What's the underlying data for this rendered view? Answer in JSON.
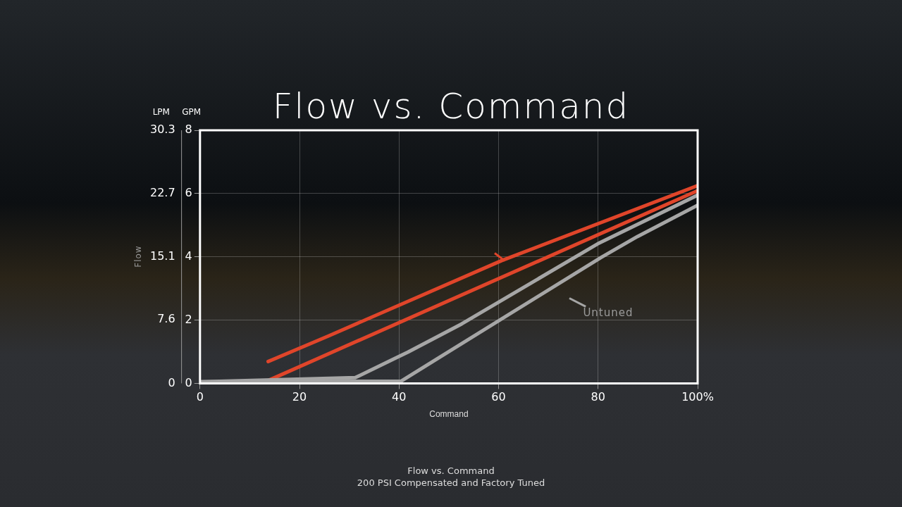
{
  "chart_data": {
    "type": "line",
    "title": "Flow vs. Command",
    "xlabel": "Command",
    "ylabel": "GPM",
    "y2label": "LPM",
    "xlim": [
      0,
      100
    ],
    "xticks": [
      0,
      20,
      40,
      60,
      80,
      {
        "value": 100,
        "label": "100%"
      }
    ],
    "ylim": [
      0,
      8
    ],
    "yticks": [
      0,
      2,
      4,
      6,
      8
    ],
    "y2lim": [
      0,
      30.3
    ],
    "y2ticks": [
      0,
      7.6,
      15.1,
      22.7,
      30.3
    ],
    "grid": true,
    "legend": false,
    "marker": "none",
    "line_style": "solid",
    "annotations": [
      "Flow",
      "Untuned",
      "Flow vs. Command",
      "200 PSI Compensated and Factory Tuned"
    ],
    "series": [
      {
        "color": "#a6a6a6",
        "x": [
          0,
          40.4,
          80.6,
          87.9,
          100
        ],
        "values": [
          0.05,
          0.07,
          3.98,
          4.64,
          5.63
        ]
      },
      {
        "color": "#a6a6a6",
        "x": [
          0,
          31.2,
          41.8,
          52.6,
          79.9,
          100
        ],
        "values": [
          0.05,
          0.18,
          0.99,
          1.88,
          4.41,
          5.95
        ]
      },
      {
        "color": "#e0452a",
        "x": [
          13.7,
          25.7,
          60.6,
          100
        ],
        "values": [
          0.69,
          1.49,
          3.88,
          6.25
        ]
      },
      {
        "color": "#e0452a",
        "x": [
          0,
          13.7,
          100
        ],
        "values": [
          0.02,
          0.09,
          6.09
        ]
      }
    ]
  }
}
